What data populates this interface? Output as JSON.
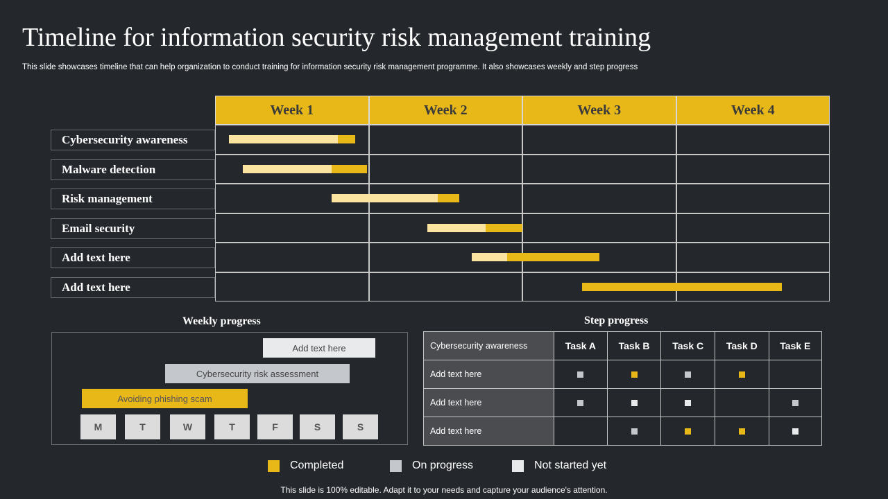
{
  "title": "Timeline for information security risk management training",
  "subtitle": "This slide showcases timeline that can help organization to conduct training for information security risk management programme. It also showcases weekly and step progress",
  "colors": {
    "completed": "#e8b818",
    "in_progress_bar": "#fbe3a0",
    "on_progress": "#c4c7cc",
    "not_started": "#e9eaec"
  },
  "timeline": {
    "weeks": [
      "Week 1",
      "Week 2",
      "Week 3",
      "Week 4"
    ],
    "rows": [
      {
        "label": "Cybersecurity awareness",
        "start": 0.09,
        "mid": 0.8,
        "end": 0.91
      },
      {
        "label": "Malware detection",
        "start": 0.18,
        "mid": 0.76,
        "end": 0.99
      },
      {
        "label": "Risk management",
        "start": 0.76,
        "mid": 1.45,
        "end": 1.59
      },
      {
        "label": "Email security",
        "start": 1.38,
        "mid": 1.76,
        "end": 2.0
      },
      {
        "label": "Add text here",
        "start": 1.67,
        "mid": 1.9,
        "end": 2.5
      },
      {
        "label": "Add text here",
        "start": 2.39,
        "mid": 2.39,
        "end": 3.69
      }
    ]
  },
  "weekly": {
    "title": "Weekly progress",
    "bars": [
      {
        "label": "Add text here",
        "status": "not_started"
      },
      {
        "label": "Cybersecurity risk assessment",
        "status": "on_progress"
      },
      {
        "label": "Avoiding phishing scam",
        "status": "completed"
      }
    ],
    "days": [
      "M",
      "T",
      "W",
      "T",
      "F",
      "S",
      "S"
    ]
  },
  "step": {
    "title": "Step progress",
    "header": "Cybersecurity awareness",
    "tasks": [
      "Task A",
      "Task B",
      "Task C",
      "Task D",
      "Task E"
    ],
    "rows": [
      {
        "label": "Add text here",
        "cells": [
          "on_progress",
          "completed",
          "on_progress",
          "completed",
          ""
        ]
      },
      {
        "label": "Add text here",
        "cells": [
          "on_progress",
          "not_started",
          "not_started",
          "",
          "on_progress"
        ]
      },
      {
        "label": "Add text here",
        "cells": [
          "",
          "on_progress",
          "completed",
          "completed",
          "not_started"
        ]
      }
    ]
  },
  "legend": [
    {
      "label": "Completed",
      "status": "completed"
    },
    {
      "label": "On progress",
      "status": "on_progress"
    },
    {
      "label": "Not started yet",
      "status": "not_started"
    }
  ],
  "footer": "This slide is 100% editable. Adapt it to your needs and capture your audience's attention."
}
